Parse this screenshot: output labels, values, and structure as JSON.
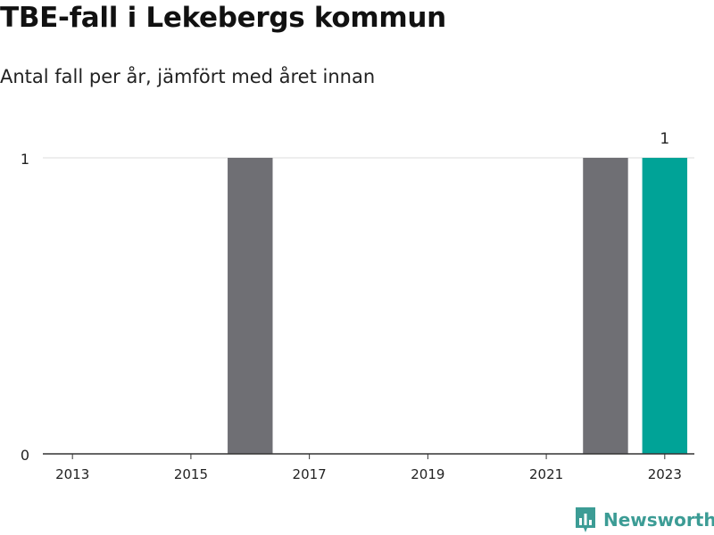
{
  "header": {
    "title": "TBE-fall i Lekebergs kommun",
    "subtitle": "Antal fall per år, jämfört med året innan"
  },
  "chart_data": {
    "type": "bar",
    "categories": [
      2013,
      2014,
      2015,
      2016,
      2017,
      2018,
      2019,
      2020,
      2021,
      2022,
      2023
    ],
    "values": [
      0,
      0,
      0,
      1,
      0,
      0,
      0,
      0,
      0,
      1,
      1
    ],
    "x_tick_labels": [
      "2013",
      "2015",
      "2017",
      "2019",
      "2021",
      "2023"
    ],
    "y_tick_labels": [
      "0",
      "1"
    ],
    "ylim": [
      0,
      1
    ],
    "highlight_category": 2023,
    "data_labels": [
      {
        "category": 2023,
        "label": "1"
      }
    ],
    "grid": true,
    "colors": {
      "bar": "#6f6f74",
      "highlight": "#00a397",
      "grid": "#dddddd",
      "axis": "#333333"
    }
  },
  "brand": {
    "name": "Newsworthy",
    "color": "#3c9c95"
  }
}
